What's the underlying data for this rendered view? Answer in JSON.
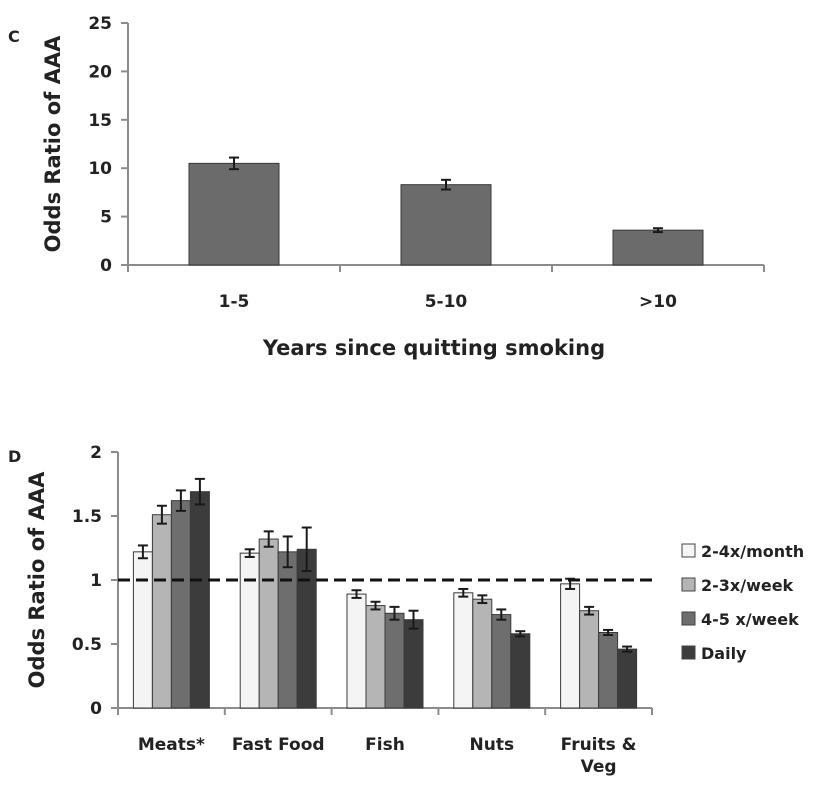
{
  "chart_data": [
    {
      "type": "bar",
      "panel": "C",
      "categories": [
        "1-5",
        "5-10",
        ">10"
      ],
      "values": [
        10.5,
        8.3,
        3.6
      ],
      "errors": [
        0.6,
        0.5,
        0.2
      ],
      "xlabel": "Years since quitting smoking",
      "ylabel": "Odds Ratio of AAA",
      "ylim": [
        0,
        25
      ],
      "yticks": [
        0,
        5,
        10,
        15,
        20,
        25
      ],
      "grid": false,
      "bar_color": "#6b6b6b"
    },
    {
      "type": "bar",
      "panel": "D",
      "categories": [
        "Meats*",
        "Fast Food",
        "Fish",
        "Nuts",
        "Fruits & Veg"
      ],
      "series": [
        {
          "name": "2-4x/month",
          "color": "#f4f4f4",
          "values": [
            1.22,
            1.21,
            0.89,
            0.9,
            0.97
          ],
          "errors": [
            0.05,
            0.03,
            0.03,
            0.03,
            0.04
          ]
        },
        {
          "name": "2-3x/week",
          "color": "#b5b5b5",
          "values": [
            1.51,
            1.32,
            0.8,
            0.85,
            0.76
          ],
          "errors": [
            0.07,
            0.06,
            0.03,
            0.03,
            0.03
          ]
        },
        {
          "name": "4-5 x/week",
          "color": "#6e6e6e",
          "values": [
            1.62,
            1.22,
            0.74,
            0.73,
            0.59
          ],
          "errors": [
            0.08,
            0.12,
            0.05,
            0.04,
            0.02
          ]
        },
        {
          "name": "Daily",
          "color": "#3c3c3c",
          "values": [
            1.69,
            1.24,
            0.69,
            0.58,
            0.46
          ],
          "errors": [
            0.1,
            0.17,
            0.07,
            0.02,
            0.02
          ]
        }
      ],
      "reference_line": 1,
      "ylabel": "Odds Ratio of AAA",
      "xlabel": "",
      "ylim": [
        0,
        2
      ],
      "yticks": [
        0,
        0.5,
        1,
        1.5,
        2
      ],
      "ytick_labels": [
        "0",
        "0.5",
        "1",
        "1.5",
        "2"
      ],
      "grid": false,
      "legend_position": "right"
    }
  ]
}
